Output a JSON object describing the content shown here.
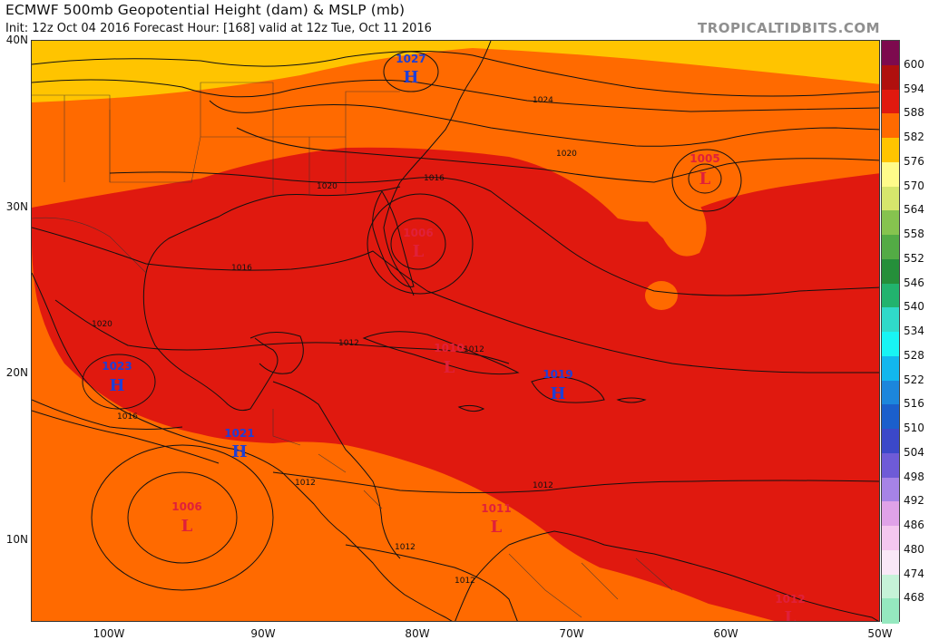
{
  "header": {
    "title": "ECMWF 500mb Geopotential Height (dam) & MSLP (mb)",
    "subtitle": "Init: 12z Oct 04 2016   Forecast Hour: [168]   valid at 12z Tue, Oct 11 2016",
    "brand": "TROPICALTIDBITS.COM"
  },
  "axes": {
    "lat_labels": [
      "40N",
      "30N",
      "20N",
      "10N"
    ],
    "lon_labels": [
      "100W",
      "90W",
      "80W",
      "70W",
      "60W",
      "50W"
    ]
  },
  "colorbar": {
    "labels": [
      "600",
      "594",
      "588",
      "582",
      "576",
      "570",
      "564",
      "558",
      "552",
      "546",
      "540",
      "534",
      "528",
      "522",
      "516",
      "510",
      "504",
      "498",
      "492",
      "486",
      "480",
      "474",
      "468"
    ],
    "colors": [
      "#7d0a4e",
      "#b0100e",
      "#e0190f",
      "#ff6a00",
      "#ffc400",
      "#fffb8a",
      "#d6e66c",
      "#86c34f",
      "#53ab45",
      "#258f3a",
      "#22b36e",
      "#30d9c9",
      "#18f4f4",
      "#12b7ee",
      "#1c86dc",
      "#1b5fcc",
      "#3b48c9",
      "#6e5bd7",
      "#a683e6",
      "#dfa2e8",
      "#f4c7ef",
      "#f9e8f7",
      "#c6f2d8",
      "#95e8bf"
    ]
  },
  "pressure_systems": [
    {
      "type": "H",
      "value": "1027",
      "color": "blue"
    },
    {
      "type": "L",
      "value": "1005",
      "color": "red"
    },
    {
      "type": "L",
      "value": "1006",
      "color": "red"
    },
    {
      "type": "H",
      "value": "1023",
      "color": "blue"
    },
    {
      "type": "H",
      "value": "1021",
      "color": "blue"
    },
    {
      "type": "L",
      "value": "1010",
      "color": "red"
    },
    {
      "type": "H",
      "value": "1019",
      "color": "blue"
    },
    {
      "type": "L",
      "value": "1006",
      "color": "red"
    },
    {
      "type": "L",
      "value": "1011",
      "color": "red"
    },
    {
      "type": "L",
      "value": "1012",
      "color": "red"
    }
  ],
  "isobar_labels": [
    "1024",
    "1020",
    "1020",
    "1016",
    "1016",
    "1020",
    "1016",
    "1012",
    "1012",
    "1012",
    "1012",
    "1012",
    "1012"
  ],
  "colors": {
    "fill_582": "#ff6a00",
    "fill_588": "#e0190f",
    "fill_576": "#ffc400",
    "coast": "#111111",
    "high_color": "#1f3fd6",
    "low_color": "#e0203a"
  }
}
